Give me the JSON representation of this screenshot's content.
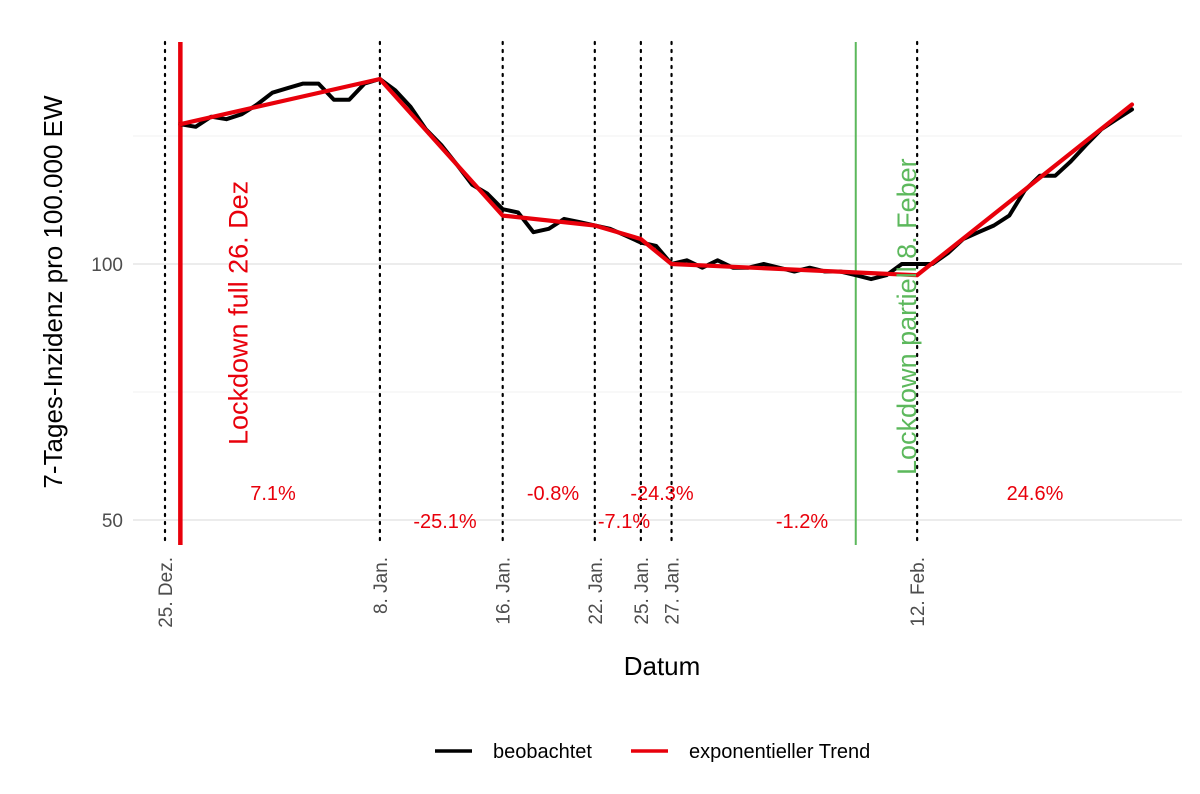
{
  "chart_data": {
    "type": "line",
    "xlabel": "Datum",
    "ylabel": "7-Tages-Inzidenz pro 100.000 EW",
    "y_scale": "log",
    "ylim": [
      46,
      182
    ],
    "y_ticks": [
      50,
      100
    ],
    "y_minor_gridlines": [
      70.7,
      141.4
    ],
    "grid": true,
    "x_tick_labels": [
      {
        "day": 0,
        "label": "25. Dez."
      },
      {
        "day": 14,
        "label": "8. Jan."
      },
      {
        "day": 22,
        "label": "16. Jan."
      },
      {
        "day": 28,
        "label": "22. Jan."
      },
      {
        "day": 31,
        "label": "25. Jan."
      },
      {
        "day": 33,
        "label": "27. Jan."
      },
      {
        "day": 49,
        "label": "12. Feb."
      }
    ],
    "series": [
      {
        "name": "beobachtet",
        "color": "#000000",
        "x": [
          1,
          2,
          3,
          4,
          5,
          6,
          7,
          8,
          9,
          10,
          11,
          12,
          13,
          14,
          15,
          16,
          17,
          18,
          19,
          20,
          21,
          22,
          23,
          24,
          25,
          26,
          27,
          28,
          29,
          30,
          31,
          32,
          33,
          34,
          35,
          36,
          37,
          38,
          39,
          40,
          41,
          42,
          43,
          44,
          45,
          46,
          47,
          48,
          49,
          50,
          51,
          52,
          53,
          54,
          55,
          56,
          57,
          58,
          59,
          60,
          61,
          62,
          63
        ],
        "y": [
          146,
          145,
          149,
          148,
          150,
          154,
          159,
          161,
          163,
          163,
          156,
          156,
          163,
          165,
          160,
          153,
          144,
          138,
          131,
          124,
          121,
          116,
          115,
          109,
          110,
          113,
          112,
          111,
          110,
          108,
          106,
          105,
          100,
          101,
          99,
          101,
          99,
          99,
          100,
          99,
          98,
          99,
          98,
          98,
          97,
          96,
          97,
          100,
          100,
          100,
          103,
          107,
          109,
          111,
          114,
          122,
          127,
          127,
          132,
          138,
          144,
          148,
          152
        ]
      },
      {
        "name": "exponentieller Trend",
        "color": "#e8000b",
        "x": [
          1,
          14,
          22,
          28,
          31,
          33,
          49,
          63
        ],
        "y": [
          146,
          165,
          114,
          111,
          107,
          100,
          97,
          154
        ]
      }
    ],
    "segment_growth_labels": [
      "7.1%",
      "-25.1%",
      "-0.8%",
      "-7.1%",
      "-24.3%",
      "-1.2%",
      "24.6%"
    ],
    "annotations": [
      {
        "text": "Lockdown full 26. Dez",
        "day": 1,
        "color": "#e8000b"
      },
      {
        "text": "Lockdown partiell 8. Feber",
        "day": 45,
        "color": "#5cb85c"
      }
    ]
  },
  "legend": {
    "items": [
      {
        "label": "beobachtet",
        "color": "#000000"
      },
      {
        "label": "exponentieller Trend",
        "color": "#e8000b"
      }
    ]
  }
}
